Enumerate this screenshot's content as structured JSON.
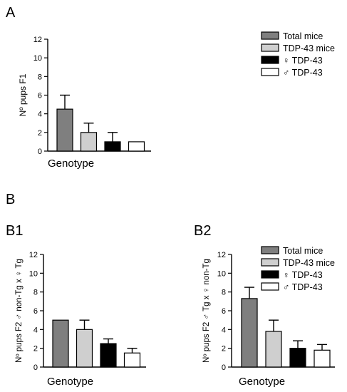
{
  "panel_labels": {
    "a": "A",
    "b": "B",
    "b1": "B1",
    "b2": "B2"
  },
  "colors": {
    "total": "#7f7f7f",
    "tdp": "#cfcfcf",
    "female": "#000000",
    "male": "#ffffff",
    "edge": "#000000"
  },
  "legend_a": [
    {
      "label": "Total mice",
      "color": "#7f7f7f"
    },
    {
      "label": "TDP-43 mice",
      "color": "#cfcfcf"
    },
    {
      "label": "♀ TDP-43",
      "color": "#000000"
    },
    {
      "label": "♂ TDP-43",
      "color": "#ffffff"
    }
  ],
  "legend_b2": [
    {
      "label": "Total mice",
      "color": "#7f7f7f"
    },
    {
      "label": "TDP-43 mice",
      "color": "#cfcfcf"
    },
    {
      "label": "♀ TDP-43",
      "color": "#000000"
    },
    {
      "label": "♂ TDP-43",
      "color": "#ffffff"
    }
  ],
  "chart_data": [
    {
      "type": "bar",
      "panel": "A",
      "categories": [
        "Total mice",
        "TDP-43 mice",
        "♀ TDP-43",
        "♂ TDP-43"
      ],
      "values": [
        4.5,
        2.0,
        1.0,
        1.0
      ],
      "errors": [
        1.5,
        1.0,
        1.0,
        0
      ],
      "xlabel": "Genotype",
      "ylabel": "Nº pups F1",
      "ylim": [
        0,
        12
      ],
      "yticks": [
        "0",
        "2",
        "4",
        "6",
        "8",
        "10",
        "12"
      ],
      "legend": "top-right"
    },
    {
      "type": "bar",
      "panel": "B1",
      "categories": [
        "Total mice",
        "TDP-43 mice",
        "♀ TDP-43",
        "♂ TDP-43"
      ],
      "values": [
        5.0,
        4.0,
        2.5,
        1.5
      ],
      "errors": [
        0,
        1.0,
        0.5,
        0.5
      ],
      "xlabel": "Genotype",
      "ylabel": "Nº pups F2 ♂ non-Tg x ♀ Tg",
      "ylim": [
        0,
        12
      ],
      "yticks": [
        "0",
        "2",
        "4",
        "6",
        "8",
        "10",
        "12"
      ]
    },
    {
      "type": "bar",
      "panel": "B2",
      "categories": [
        "Total mice",
        "TDP-43 mice",
        "♀ TDP-43",
        "♂ TDP-43"
      ],
      "values": [
        7.3,
        3.8,
        2.0,
        1.8
      ],
      "errors": [
        1.2,
        1.2,
        0.8,
        0.6
      ],
      "xlabel": "Genotype",
      "ylabel": "Nº pups F2 ♂ Tg x ♀ non-Tg",
      "ylim": [
        0,
        12
      ],
      "yticks": [
        "0",
        "2",
        "4",
        "6",
        "8",
        "10",
        "12"
      ],
      "legend": "top-right"
    }
  ]
}
